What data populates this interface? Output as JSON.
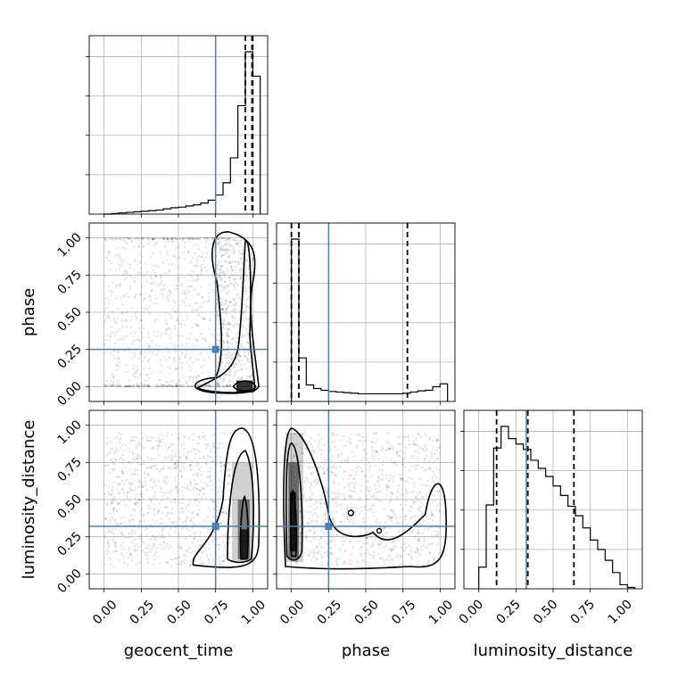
{
  "chart_data": {
    "type": "corner",
    "parameters": [
      "geocent_time",
      "phase",
      "luminosity_distance"
    ],
    "tick_values": [
      0.0,
      0.25,
      0.5,
      0.75,
      1.0
    ],
    "tick_labels": [
      "0.00",
      "0.25",
      "0.50",
      "0.75",
      "1.00"
    ],
    "axis_range": [
      -0.1,
      1.1
    ],
    "grid": true,
    "truth_color": "#4682b4",
    "truths": {
      "geocent_time": 0.75,
      "phase": 0.25,
      "luminosity_distance": 0.32
    },
    "marginals": {
      "geocent_time": {
        "bin_edges": [
          0.0,
          0.05,
          0.1,
          0.15,
          0.2,
          0.25,
          0.3,
          0.35,
          0.4,
          0.45,
          0.5,
          0.55,
          0.6,
          0.65,
          0.7,
          0.75,
          0.8,
          0.85,
          0.9,
          0.95,
          1.0,
          1.05
        ],
        "counts": [
          0,
          1,
          2,
          3,
          4,
          5,
          6,
          7,
          9,
          11,
          12,
          14,
          16,
          19,
          24,
          33,
          54,
          97,
          187,
          280,
          238
        ],
        "quantiles": [
          0.95,
          0.995,
          1.0
        ]
      },
      "phase": {
        "bin_edges": [
          0.0,
          0.05,
          0.1,
          0.15,
          0.2,
          0.25,
          0.3,
          0.35,
          0.4,
          0.45,
          0.5,
          0.55,
          0.6,
          0.65,
          0.7,
          0.75,
          0.8,
          0.85,
          0.9,
          0.95,
          1.0,
          1.05
        ],
        "counts": [
          276,
          74,
          28,
          22,
          19,
          17,
          16,
          15,
          14,
          13,
          13,
          13,
          13,
          13,
          13,
          14,
          16,
          18,
          19,
          25,
          30
        ],
        "quantiles": [
          0.0,
          0.05,
          0.78
        ]
      },
      "luminosity_distance": {
        "bin_edges": [
          0.0,
          0.05,
          0.1,
          0.15,
          0.2,
          0.25,
          0.3,
          0.35,
          0.4,
          0.45,
          0.5,
          0.55,
          0.6,
          0.65,
          0.7,
          0.75,
          0.8,
          0.85,
          0.9,
          0.95,
          1.0,
          1.05
        ],
        "counts": [
          16,
          62,
          104,
          120,
          111,
          107,
          103,
          95,
          89,
          83,
          76,
          69,
          61,
          54,
          45,
          36,
          29,
          21,
          12,
          3,
          1
        ],
        "quantiles": [
          0.12,
          0.33,
          0.64
        ]
      }
    },
    "pairs": [
      {
        "x": "geocent_time",
        "y": "phase"
      },
      {
        "x": "geocent_time",
        "y": "luminosity_distance"
      },
      {
        "x": "phase",
        "y": "luminosity_distance"
      }
    ]
  }
}
